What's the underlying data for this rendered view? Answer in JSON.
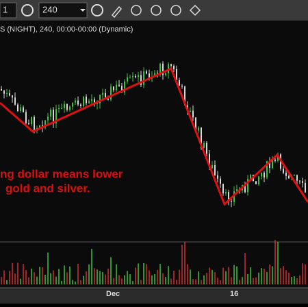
{
  "toolbar": {
    "period_left": "1",
    "period": "240"
  },
  "chart": {
    "header": "S (NIGHT), 240, 00:00-00:00 (Dynamic)",
    "annotation": [
      "ng dollar means lower",
      "gold and silver."
    ],
    "x_labels": [
      "Dec",
      "16"
    ]
  }
}
